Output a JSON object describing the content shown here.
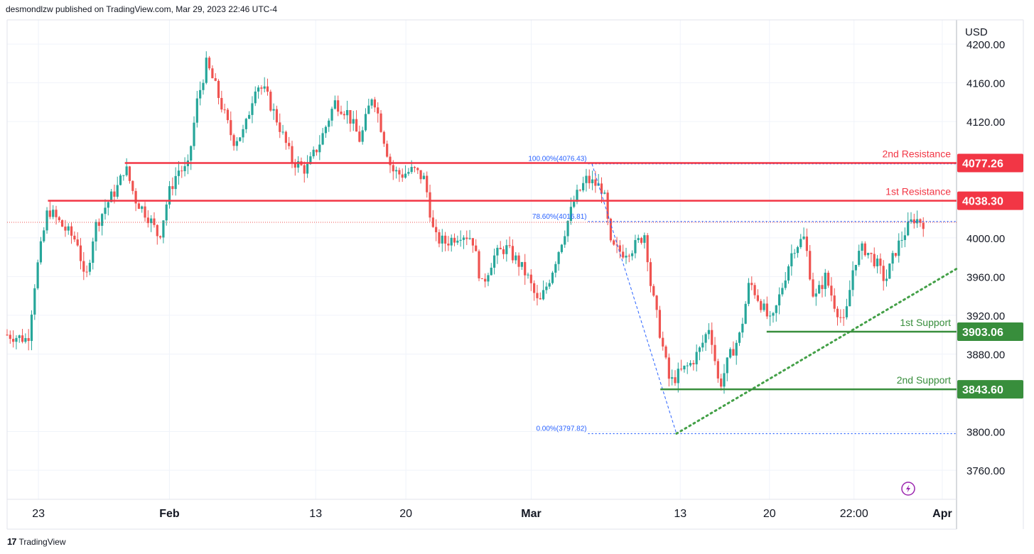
{
  "header": {
    "publisher": "desmondlzw published on TradingView.com, Mar 29, 2023 22:46 UTC-4"
  },
  "footer": {
    "logo_mark": "17",
    "brand": "TradingView"
  },
  "colors": {
    "up": "#26a69a",
    "down": "#ef5350",
    "resistance": "#f23645",
    "support": "#388e3c",
    "fib": "#2962ff",
    "trend": "#43a047",
    "grid": "#f0f3fa"
  },
  "icons": {
    "flash": "lightning-icon"
  },
  "chart_data": {
    "type": "candlestick",
    "currency_label": "USD",
    "ylim": [
      3730,
      4225
    ],
    "y_ticks": [
      {
        "v": 4200,
        "label": "4200.00"
      },
      {
        "v": 4160,
        "label": "4160.00"
      },
      {
        "v": 4120,
        "label": "4120.00"
      },
      {
        "v": 4000,
        "label": "4000.00"
      },
      {
        "v": 3960,
        "label": "3960.00"
      },
      {
        "v": 3920,
        "label": "3920.00"
      },
      {
        "v": 3880,
        "label": "3880.00"
      },
      {
        "v": 3800,
        "label": "3800.00"
      },
      {
        "v": 3760,
        "label": "3760.00"
      }
    ],
    "x_ticks": [
      {
        "label": "23",
        "pos": 0.033
      },
      {
        "label": "Feb",
        "pos": 0.171,
        "bold": true
      },
      {
        "label": "13",
        "pos": 0.325
      },
      {
        "label": "20",
        "pos": 0.42
      },
      {
        "label": "Mar",
        "pos": 0.552,
        "bold": true
      },
      {
        "label": "13",
        "pos": 0.709
      },
      {
        "label": "20",
        "pos": 0.803
      },
      {
        "label": "22:00",
        "pos": 0.892
      },
      {
        "label": "Apr",
        "pos": 0.985,
        "bold": true
      }
    ],
    "last_price": 4016,
    "levels": [
      {
        "name": "2nd Resistance",
        "value": 4077.26,
        "label": "4077.26",
        "kind": "resistance",
        "start": 0.124
      },
      {
        "name": "1st Resistance",
        "value": 4038.3,
        "label": "4038.30",
        "kind": "resistance",
        "start": 0.043
      },
      {
        "name": "1st Support",
        "value": 3903.06,
        "label": "3903.06",
        "kind": "support",
        "start": 0.8
      },
      {
        "name": "2nd Support",
        "value": 3843.6,
        "label": "3843.60",
        "kind": "support",
        "start": 0.688
      }
    ],
    "fib": [
      {
        "label": "100.00%(4076.43)",
        "value": 4076.43
      },
      {
        "label": "78.60%(4016.81)",
        "value": 4016.81
      },
      {
        "label": "0.00%(3797.82)",
        "value": 3797.82
      }
    ],
    "fib_range": {
      "start": 0.612,
      "end": 1.0
    },
    "fib_leg": [
      {
        "t": 0.616,
        "v": 4076.43
      },
      {
        "t": 0.705,
        "v": 3797.82
      }
    ],
    "trendline": [
      {
        "t": 0.705,
        "v": 3797.82
      },
      {
        "t": 1.0,
        "v": 3968
      }
    ],
    "series": [
      {
        "t": 0.0,
        "v": 3900
      },
      {
        "t": 0.022,
        "v": 3895
      },
      {
        "t": 0.03,
        "v": 3960
      },
      {
        "t": 0.043,
        "v": 4030
      },
      {
        "t": 0.06,
        "v": 4010
      },
      {
        "t": 0.075,
        "v": 3995
      },
      {
        "t": 0.082,
        "v": 3950
      },
      {
        "t": 0.092,
        "v": 4010
      },
      {
        "t": 0.105,
        "v": 4035
      },
      {
        "t": 0.118,
        "v": 4055
      },
      {
        "t": 0.124,
        "v": 4075
      },
      {
        "t": 0.135,
        "v": 4040
      },
      {
        "t": 0.15,
        "v": 4020
      },
      {
        "t": 0.16,
        "v": 4000
      },
      {
        "t": 0.17,
        "v": 4045
      },
      {
        "t": 0.18,
        "v": 4070
      },
      {
        "t": 0.19,
        "v": 4070
      },
      {
        "t": 0.2,
        "v": 4140
      },
      {
        "t": 0.21,
        "v": 4180
      },
      {
        "t": 0.218,
        "v": 4160
      },
      {
        "t": 0.228,
        "v": 4130
      },
      {
        "t": 0.238,
        "v": 4100
      },
      {
        "t": 0.25,
        "v": 4110
      },
      {
        "t": 0.262,
        "v": 4160
      },
      {
        "t": 0.272,
        "v": 4150
      },
      {
        "t": 0.285,
        "v": 4120
      },
      {
        "t": 0.3,
        "v": 4080
      },
      {
        "t": 0.315,
        "v": 4070
      },
      {
        "t": 0.33,
        "v": 4100
      },
      {
        "t": 0.345,
        "v": 4140
      },
      {
        "t": 0.358,
        "v": 4130
      },
      {
        "t": 0.372,
        "v": 4100
      },
      {
        "t": 0.385,
        "v": 4150
      },
      {
        "t": 0.395,
        "v": 4110
      },
      {
        "t": 0.405,
        "v": 4070
      },
      {
        "t": 0.415,
        "v": 4065
      },
      {
        "t": 0.428,
        "v": 4070
      },
      {
        "t": 0.44,
        "v": 4060
      },
      {
        "t": 0.45,
        "v": 4000
      },
      {
        "t": 0.462,
        "v": 3995
      },
      {
        "t": 0.478,
        "v": 4005
      },
      {
        "t": 0.49,
        "v": 4000
      },
      {
        "t": 0.5,
        "v": 3950
      },
      {
        "t": 0.512,
        "v": 3980
      },
      {
        "t": 0.525,
        "v": 3990
      },
      {
        "t": 0.538,
        "v": 3975
      },
      {
        "t": 0.548,
        "v": 3960
      },
      {
        "t": 0.56,
        "v": 3930
      },
      {
        "t": 0.572,
        "v": 3960
      },
      {
        "t": 0.585,
        "v": 4000
      },
      {
        "t": 0.598,
        "v": 4040
      },
      {
        "t": 0.61,
        "v": 4060
      },
      {
        "t": 0.62,
        "v": 4055
      },
      {
        "t": 0.628,
        "v": 4050
      },
      {
        "t": 0.636,
        "v": 3990
      },
      {
        "t": 0.648,
        "v": 3985
      },
      {
        "t": 0.66,
        "v": 3990
      },
      {
        "t": 0.672,
        "v": 4005
      },
      {
        "t": 0.678,
        "v": 3950
      },
      {
        "t": 0.688,
        "v": 3900
      },
      {
        "t": 0.698,
        "v": 3850
      },
      {
        "t": 0.708,
        "v": 3860
      },
      {
        "t": 0.72,
        "v": 3870
      },
      {
        "t": 0.73,
        "v": 3885
      },
      {
        "t": 0.74,
        "v": 3910
      },
      {
        "t": 0.75,
        "v": 3845
      },
      {
        "t": 0.76,
        "v": 3875
      },
      {
        "t": 0.772,
        "v": 3900
      },
      {
        "t": 0.782,
        "v": 3955
      },
      {
        "t": 0.795,
        "v": 3930
      },
      {
        "t": 0.805,
        "v": 3910
      },
      {
        "t": 0.815,
        "v": 3945
      },
      {
        "t": 0.828,
        "v": 3990
      },
      {
        "t": 0.84,
        "v": 4000
      },
      {
        "t": 0.85,
        "v": 3935
      },
      {
        "t": 0.862,
        "v": 3960
      },
      {
        "t": 0.872,
        "v": 3930
      },
      {
        "t": 0.882,
        "v": 3910
      },
      {
        "t": 0.892,
        "v": 3975
      },
      {
        "t": 0.902,
        "v": 3990
      },
      {
        "t": 0.915,
        "v": 3975
      },
      {
        "t": 0.925,
        "v": 3955
      },
      {
        "t": 0.935,
        "v": 3985
      },
      {
        "t": 0.945,
        "v": 4005
      },
      {
        "t": 0.955,
        "v": 4020
      },
      {
        "t": 0.965,
        "v": 4016
      }
    ]
  }
}
